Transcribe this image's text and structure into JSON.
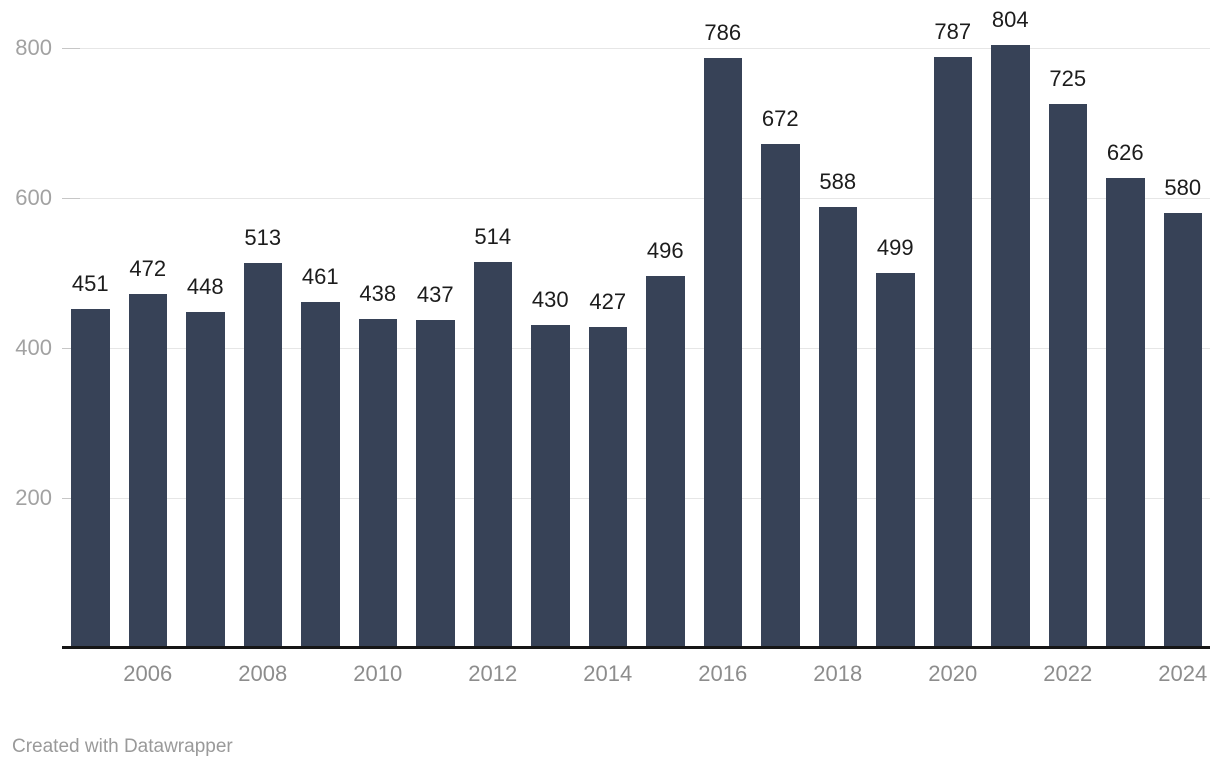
{
  "chart_data": {
    "type": "bar",
    "x": [
      2005,
      2006,
      2007,
      2008,
      2009,
      2010,
      2011,
      2012,
      2013,
      2014,
      2015,
      2016,
      2017,
      2018,
      2019,
      2020,
      2021,
      2022,
      2023,
      2024
    ],
    "values": [
      451,
      472,
      448,
      513,
      461,
      438,
      437,
      514,
      430,
      427,
      496,
      786,
      672,
      588,
      499,
      787,
      804,
      725,
      626,
      580
    ],
    "bar_value_labels": [
      "451",
      "472",
      "448",
      "513",
      "461",
      "438",
      "437",
      "514",
      "430",
      "427",
      "496",
      "786",
      "672",
      "588",
      "499",
      "787",
      "804",
      "725",
      "626",
      "580"
    ],
    "title": "",
    "xlabel": "",
    "ylabel": "",
    "ylim": [
      0,
      860
    ],
    "y_ticks": [
      200,
      400,
      600,
      800
    ],
    "y_tick_labels": [
      "200",
      "400",
      "600",
      "800"
    ],
    "x_tick_years": [
      2006,
      2008,
      2010,
      2012,
      2014,
      2016,
      2018,
      2020,
      2022,
      2024
    ],
    "x_tick_labels": [
      "2006",
      "2008",
      "2010",
      "2012",
      "2014",
      "2016",
      "2018",
      "2020",
      "2022",
      "2024"
    ],
    "grid": "horizontal",
    "legend": "none",
    "value_labels_shown": true
  },
  "colors": {
    "bar": "#374257",
    "value_label": "#1c1c1c",
    "y_axis_label": "#a2a2a2",
    "x_axis_label": "#8d8d8d",
    "gridline": "#e6e6e6",
    "tick": "#c6c6c6",
    "axis_line": "#161616",
    "background": "#ffffff",
    "credit_text": "#9a9a9a"
  },
  "footer": {
    "credit": "Created with Datawrapper"
  }
}
